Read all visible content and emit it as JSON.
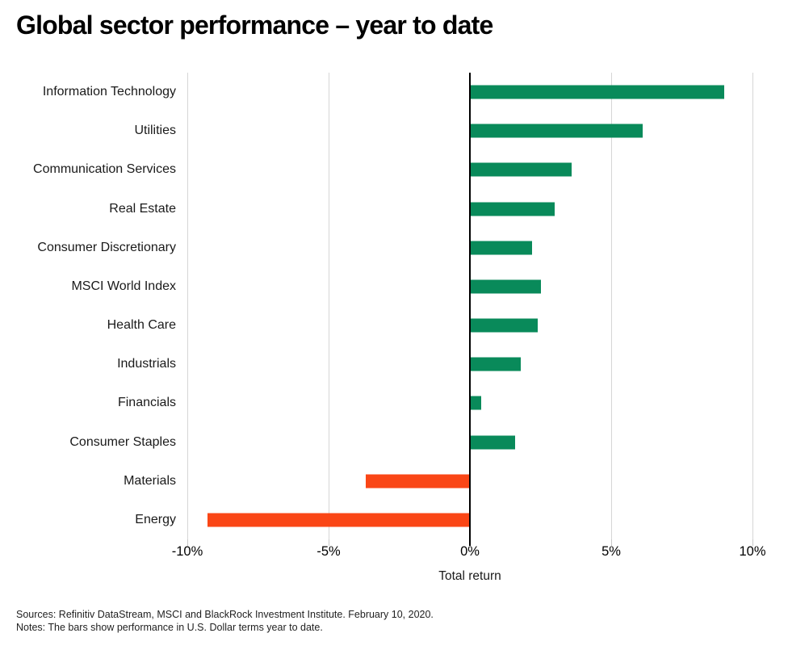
{
  "title": "Global sector performance – year to date",
  "chart_data": {
    "type": "bar",
    "orientation": "horizontal",
    "categories": [
      "Information Technology",
      "Utilities",
      "Communication Services",
      "Real Estate",
      "Consumer Discretionary",
      "MSCI World Index",
      "Health Care",
      "Industrials",
      "Financials",
      "Consumer Staples",
      "Materials",
      "Energy"
    ],
    "values": [
      9.0,
      6.1,
      3.6,
      3.0,
      2.2,
      2.5,
      2.4,
      1.8,
      0.4,
      1.6,
      -3.7,
      -9.3
    ],
    "unit": "%",
    "xlabel": "Total return",
    "xlim": [
      -10,
      10
    ],
    "xticks": [
      -10,
      -5,
      0,
      5,
      10
    ],
    "xtick_labels": [
      "-10%",
      "-5%",
      "0%",
      "5%",
      "10%"
    ],
    "grid": "vertical",
    "legend": "none",
    "positive_color": "#098a5a",
    "negative_color": "#fa4616",
    "zero_line_color": "#000000",
    "gridline_color": "#d6d6d6"
  },
  "footer": {
    "sources": "Sources: Refinitiv DataStream, MSCI and BlackRock Investment Institute. February 10, 2020.",
    "notes": "Notes: The bars show performance in U.S. Dollar terms year to date."
  }
}
